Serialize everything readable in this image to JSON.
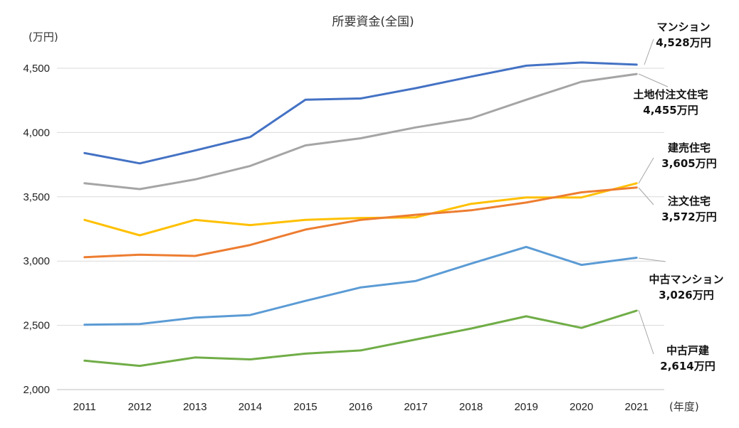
{
  "chart_data": {
    "type": "line",
    "title": "所要資金(全国)",
    "ylabel": "(万円)",
    "xlabel": "(年度)",
    "ylim": [
      2000,
      4500
    ],
    "yticks": [
      "2,000",
      "2,500",
      "3,000",
      "3,500",
      "4,000",
      "4,500"
    ],
    "categories": [
      "2011",
      "2012",
      "2013",
      "2014",
      "2015",
      "2016",
      "2017",
      "2018",
      "2019",
      "2020",
      "2021"
    ],
    "grid": true,
    "series": [
      {
        "name": "マンション",
        "color": "#4472c4",
        "values": [
          3840,
          3760,
          3860,
          3965,
          4255,
          4265,
          4345,
          4435,
          4520,
          4545,
          4528
        ],
        "label_name": "マンション",
        "label_value": "4,528万円"
      },
      {
        "name": "土地付注文住宅",
        "color": "#a5a5a5",
        "values": [
          3605,
          3560,
          3635,
          3740,
          3900,
          3955,
          4040,
          4110,
          4255,
          4395,
          4455
        ],
        "label_name": "土地付注文住宅",
        "label_value": "4,455万円"
      },
      {
        "name": "建売住宅",
        "color": "#ffc000",
        "values": [
          3320,
          3200,
          3320,
          3280,
          3320,
          3335,
          3340,
          3445,
          3495,
          3495,
          3605
        ],
        "label_name": "建売住宅",
        "label_value": "3,605万円"
      },
      {
        "name": "注文住宅",
        "color": "#ed7d31",
        "values": [
          3030,
          3050,
          3040,
          3125,
          3245,
          3320,
          3360,
          3395,
          3455,
          3535,
          3572
        ],
        "label_name": "注文住宅",
        "label_value": "3,572万円"
      },
      {
        "name": "中古マンション",
        "color": "#5b9bd5",
        "values": [
          2505,
          2510,
          2560,
          2580,
          2690,
          2795,
          2845,
          2980,
          3110,
          2970,
          3026
        ],
        "label_name": "中古マンション",
        "label_value": "3,026万円"
      },
      {
        "name": "中古戸建",
        "color": "#70ad47",
        "values": [
          2225,
          2185,
          2250,
          2235,
          2280,
          2305,
          2390,
          2475,
          2570,
          2480,
          2614
        ],
        "label_name": "中古戸建",
        "label_value": "2,614万円"
      }
    ]
  }
}
